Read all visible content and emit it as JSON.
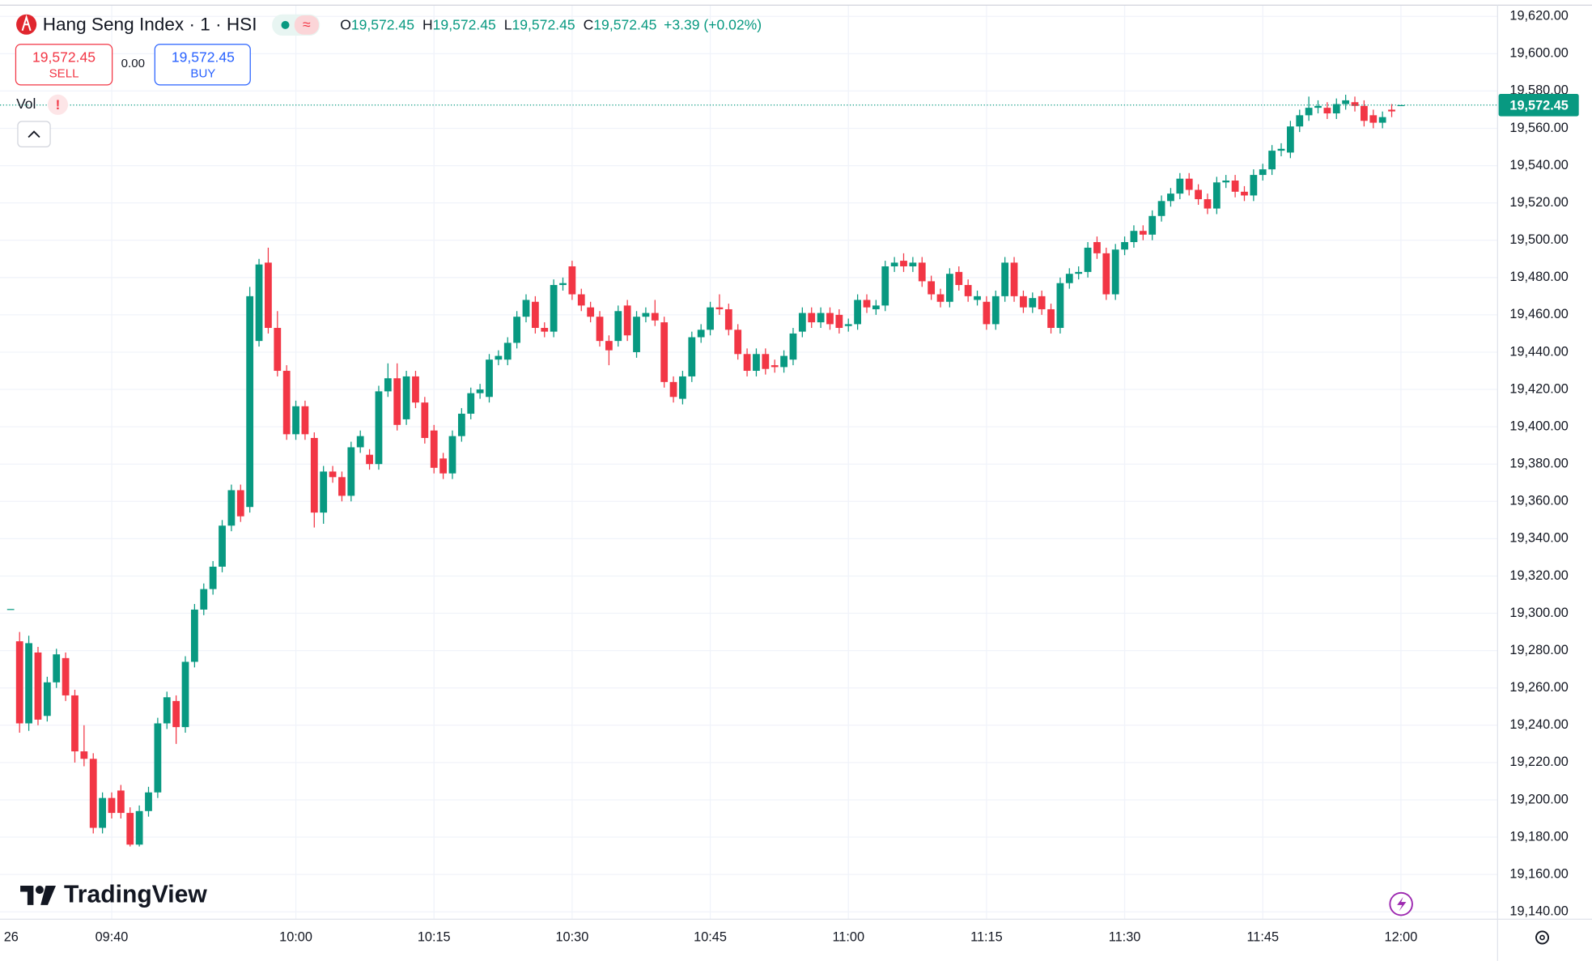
{
  "header": {
    "title": "Hang Seng Index · 1 · HSI",
    "ohlc": [
      {
        "label": "O",
        "value": "19,572.45"
      },
      {
        "label": "H",
        "value": "19,572.45"
      },
      {
        "label": "L",
        "value": "19,572.45"
      },
      {
        "label": "C",
        "value": "19,572.45"
      }
    ],
    "change": "+3.39 (+0.02%)",
    "sell_price": "19,572.45",
    "sell_label": "SELL",
    "spread": "0.00",
    "buy_price": "19,572.45",
    "buy_label": "BUY",
    "vol_label": "Vol",
    "brand": "TradingView"
  },
  "chart_data": {
    "type": "candlestick",
    "up_color": "#089981",
    "down_color": "#f23645",
    "grid": true,
    "x": [
      "09:30",
      "09:31",
      "09:32",
      "09:33",
      "09:34",
      "09:35",
      "09:36",
      "09:37",
      "09:38",
      "09:39",
      "09:40",
      "09:41",
      "09:42",
      "09:43",
      "09:44",
      "09:45",
      "09:46",
      "09:47",
      "09:48",
      "09:49",
      "09:50",
      "09:51",
      "09:52",
      "09:53",
      "09:54",
      "09:55",
      "09:56",
      "09:57",
      "09:58",
      "09:59",
      "10:00",
      "10:01",
      "10:02",
      "10:03",
      "10:04",
      "10:05",
      "10:06",
      "10:07",
      "10:08",
      "10:09",
      "10:10",
      "10:11",
      "10:12",
      "10:13",
      "10:14",
      "10:15",
      "10:16",
      "10:17",
      "10:18",
      "10:19",
      "10:20",
      "10:21",
      "10:22",
      "10:23",
      "10:24",
      "10:25",
      "10:26",
      "10:27",
      "10:28",
      "10:29",
      "10:30",
      "10:31",
      "10:32",
      "10:33",
      "10:34",
      "10:35",
      "10:36",
      "10:37",
      "10:38",
      "10:39",
      "10:40",
      "10:41",
      "10:42",
      "10:43",
      "10:44",
      "10:45",
      "10:46",
      "10:47",
      "10:48",
      "10:49",
      "10:50",
      "10:51",
      "10:52",
      "10:53",
      "10:54",
      "10:55",
      "10:56",
      "10:57",
      "10:58",
      "10:59",
      "11:00",
      "11:01",
      "11:02",
      "11:03",
      "11:04",
      "11:05",
      "11:06",
      "11:07",
      "11:08",
      "11:09",
      "11:10",
      "11:11",
      "11:12",
      "11:13",
      "11:14",
      "11:15",
      "11:16",
      "11:17",
      "11:18",
      "11:19",
      "11:20",
      "11:21",
      "11:22",
      "11:23",
      "11:24",
      "11:25",
      "11:26",
      "11:27",
      "11:28",
      "11:29",
      "11:30",
      "11:31",
      "11:32",
      "11:33",
      "11:34",
      "11:35",
      "11:36",
      "11:37",
      "11:38",
      "11:39",
      "11:40",
      "11:41",
      "11:42",
      "11:43",
      "11:44",
      "11:45",
      "11:46",
      "11:47",
      "11:48",
      "11:49",
      "11:50",
      "11:51",
      "11:52",
      "11:53",
      "11:54",
      "11:55",
      "11:56",
      "11:57",
      "11:58",
      "11:59",
      "12:00"
    ],
    "candles": [
      [
        19285,
        19290,
        19236,
        19241
      ],
      [
        19241,
        19288,
        19237,
        19284
      ],
      [
        19279,
        19282,
        19240,
        19243
      ],
      [
        19245,
        19266,
        19242,
        19263
      ],
      [
        19263,
        19281,
        19260,
        19278
      ],
      [
        19276,
        19279,
        19253,
        19256
      ],
      [
        19256,
        19259,
        19220,
        19226
      ],
      [
        19226,
        19240,
        19218,
        19222
      ],
      [
        19222,
        19225,
        19182,
        19185
      ],
      [
        19185,
        19204,
        19182,
        19201
      ],
      [
        19201,
        19204,
        19190,
        19193
      ],
      [
        19205,
        19208,
        19190,
        19193
      ],
      [
        19193,
        19196,
        19175,
        19176
      ],
      [
        19176,
        19197,
        19175,
        19194
      ],
      [
        19194,
        19207,
        19191,
        19204
      ],
      [
        19204,
        19244,
        19201,
        19241
      ],
      [
        19241,
        19258,
        19238,
        19255
      ],
      [
        19253,
        19256,
        19230,
        19239
      ],
      [
        19239,
        19277,
        19236,
        19274
      ],
      [
        19274,
        19305,
        19271,
        19302
      ],
      [
        19302,
        19316,
        19299,
        19313
      ],
      [
        19313,
        19328,
        19310,
        19325
      ],
      [
        19325,
        19350,
        19322,
        19347
      ],
      [
        19347,
        19369,
        19344,
        19366
      ],
      [
        19366,
        19369,
        19349,
        19352
      ],
      [
        19357,
        19475,
        19354,
        19470
      ],
      [
        19446,
        19490,
        19443,
        19487
      ],
      [
        19488,
        19496,
        19450,
        19453
      ],
      [
        19453,
        19462,
        19427,
        19430
      ],
      [
        19430,
        19433,
        19393,
        19396
      ],
      [
        19396,
        19414,
        19393,
        19411
      ],
      [
        19411,
        19414,
        19393,
        19396
      ],
      [
        19394,
        19397,
        19346,
        19354
      ],
      [
        19354,
        19379,
        19348,
        19376
      ],
      [
        19376,
        19379,
        19370,
        19373
      ],
      [
        19373,
        19376,
        19360,
        19363
      ],
      [
        19363,
        19392,
        19360,
        19389
      ],
      [
        19389,
        19398,
        19386,
        19395
      ],
      [
        19385,
        19388,
        19377,
        19380
      ],
      [
        19380,
        19422,
        19377,
        19419
      ],
      [
        19419,
        19434,
        19416,
        19426
      ],
      [
        19426,
        19434,
        19398,
        19401
      ],
      [
        19404,
        19430,
        19401,
        19427
      ],
      [
        19427,
        19430,
        19410,
        19413
      ],
      [
        19413,
        19416,
        19391,
        19394
      ],
      [
        19398,
        19401,
        19375,
        19378
      ],
      [
        19383,
        19386,
        19372,
        19375
      ],
      [
        19375,
        19398,
        19372,
        19395
      ],
      [
        19395,
        19410,
        19392,
        19407
      ],
      [
        19407,
        19421,
        19404,
        19418
      ],
      [
        19418,
        19423,
        19415,
        19420
      ],
      [
        19416,
        19439,
        19413,
        19436
      ],
      [
        19436,
        19441,
        19433,
        19438
      ],
      [
        19436,
        19448,
        19433,
        19445
      ],
      [
        19445,
        19462,
        19442,
        19459
      ],
      [
        19459,
        19471,
        19456,
        19468
      ],
      [
        19467,
        19470,
        19450,
        19453
      ],
      [
        19453,
        19456,
        19448,
        19451
      ],
      [
        19451,
        19479,
        19448,
        19476
      ],
      [
        19476,
        19480,
        19473,
        19477
      ],
      [
        19486,
        19489,
        19468,
        19471
      ],
      [
        19471,
        19474,
        19462,
        19465
      ],
      [
        19464,
        19467,
        19456,
        19459
      ],
      [
        19459,
        19462,
        19443,
        19446
      ],
      [
        19446,
        19449,
        19433,
        19441
      ],
      [
        19446,
        19465,
        19443,
        19462
      ],
      [
        19465,
        19468,
        19446,
        19449
      ],
      [
        19440,
        19462,
        19437,
        19459
      ],
      [
        19459,
        19464,
        19456,
        19461
      ],
      [
        19461,
        19468,
        19454,
        19457
      ],
      [
        19456,
        19459,
        19421,
        19424
      ],
      [
        19424,
        19427,
        19413,
        19416
      ],
      [
        19415,
        19430,
        19412,
        19427
      ],
      [
        19427,
        19451,
        19424,
        19448
      ],
      [
        19448,
        19455,
        19445,
        19452
      ],
      [
        19452,
        19467,
        19449,
        19464
      ],
      [
        19464,
        19471,
        19460,
        19463
      ],
      [
        19463,
        19466,
        19449,
        19452
      ],
      [
        19452,
        19455,
        19436,
        19439
      ],
      [
        19439,
        19442,
        19427,
        19430
      ],
      [
        19430,
        19442,
        19427,
        19439
      ],
      [
        19439,
        19442,
        19428,
        19431
      ],
      [
        19433,
        19436,
        19429,
        19432
      ],
      [
        19432,
        19441,
        19429,
        19438
      ],
      [
        19436,
        19453,
        19433,
        19450
      ],
      [
        19451,
        19464,
        19448,
        19461
      ],
      [
        19461,
        19464,
        19453,
        19456
      ],
      [
        19456,
        19464,
        19453,
        19461
      ],
      [
        19461,
        19464,
        19452,
        19455
      ],
      [
        19460,
        19463,
        19450,
        19453
      ],
      [
        19454,
        19458,
        19451,
        19455
      ],
      [
        19455,
        19471,
        19452,
        19468
      ],
      [
        19468,
        19471,
        19461,
        19464
      ],
      [
        19463,
        19468,
        19460,
        19465
      ],
      [
        19465,
        19489,
        19462,
        19486
      ],
      [
        19486,
        19491,
        19483,
        19488
      ],
      [
        19489,
        19493,
        19483,
        19486
      ],
      [
        19486,
        19491,
        19483,
        19488
      ],
      [
        19488,
        19491,
        19475,
        19478
      ],
      [
        19478,
        19481,
        19468,
        19471
      ],
      [
        19471,
        19474,
        19464,
        19467
      ],
      [
        19467,
        19485,
        19464,
        19482
      ],
      [
        19483,
        19486,
        19473,
        19476
      ],
      [
        19476,
        19479,
        19467,
        19470
      ],
      [
        19468,
        19473,
        19465,
        19470
      ],
      [
        19467,
        19470,
        19452,
        19455
      ],
      [
        19455,
        19473,
        19452,
        19470
      ],
      [
        19470,
        19491,
        19467,
        19488
      ],
      [
        19488,
        19491,
        19467,
        19470
      ],
      [
        19470,
        19473,
        19461,
        19464
      ],
      [
        19464,
        19472,
        19461,
        19469
      ],
      [
        19470,
        19473,
        19460,
        19463
      ],
      [
        19463,
        19466,
        19450,
        19453
      ],
      [
        19453,
        19480,
        19450,
        19477
      ],
      [
        19477,
        19485,
        19474,
        19482
      ],
      [
        19482,
        19486,
        19479,
        19483
      ],
      [
        19483,
        19499,
        19480,
        19496
      ],
      [
        19499,
        19502,
        19490,
        19493
      ],
      [
        19493,
        19496,
        19468,
        19471
      ],
      [
        19471,
        19498,
        19468,
        19495
      ],
      [
        19495,
        19502,
        19492,
        19499
      ],
      [
        19499,
        19508,
        19496,
        19505
      ],
      [
        19505,
        19508,
        19500,
        19503
      ],
      [
        19503,
        19516,
        19500,
        19513
      ],
      [
        19513,
        19524,
        19510,
        19521
      ],
      [
        19521,
        19528,
        19518,
        19525
      ],
      [
        19525,
        19536,
        19522,
        19533
      ],
      [
        19533,
        19536,
        19524,
        19527
      ],
      [
        19527,
        19530,
        19519,
        19522
      ],
      [
        19522,
        19525,
        19514,
        19517
      ],
      [
        19517,
        19534,
        19514,
        19531
      ],
      [
        19531,
        19535,
        19528,
        19532
      ],
      [
        19532,
        19535,
        19523,
        19526
      ],
      [
        19526,
        19529,
        19521,
        19524
      ],
      [
        19524,
        19538,
        19521,
        19535
      ],
      [
        19535,
        19541,
        19532,
        19538
      ],
      [
        19538,
        19551,
        19535,
        19548
      ],
      [
        19548,
        19552,
        19545,
        19549
      ],
      [
        19547,
        19564,
        19544,
        19561
      ],
      [
        19561,
        19570,
        19558,
        19567
      ],
      [
        19567,
        19577,
        19564,
        19571
      ],
      [
        19571,
        19575,
        19568,
        19572
      ],
      [
        19571,
        19574,
        19565,
        19568
      ],
      [
        19568,
        19576,
        19565,
        19573
      ],
      [
        19573,
        19578,
        19570,
        19575
      ],
      [
        19574,
        19577,
        19569,
        19572
      ],
      [
        19572,
        19575,
        19561,
        19564
      ],
      [
        19567,
        19570,
        19560,
        19563
      ],
      [
        19563,
        19569,
        19560,
        19566
      ],
      [
        19570,
        19573,
        19566,
        19569.06
      ],
      [
        19572.45,
        19572.45,
        19572.45,
        19572.45
      ]
    ],
    "ylim": [
      19136,
      19626
    ],
    "yticks": [
      {
        "value": 19140,
        "label": "19,140.00"
      },
      {
        "value": 19160,
        "label": "19,160.00"
      },
      {
        "value": 19180,
        "label": "19,180.00"
      },
      {
        "value": 19200,
        "label": "19,200.00"
      },
      {
        "value": 19220,
        "label": "19,220.00"
      },
      {
        "value": 19240,
        "label": "19,240.00"
      },
      {
        "value": 19260,
        "label": "19,260.00"
      },
      {
        "value": 19280,
        "label": "19,280.00"
      },
      {
        "value": 19300,
        "label": "19,300.00"
      },
      {
        "value": 19320,
        "label": "19,320.00"
      },
      {
        "value": 19340,
        "label": "19,340.00"
      },
      {
        "value": 19360,
        "label": "19,360.00"
      },
      {
        "value": 19380,
        "label": "19,380.00"
      },
      {
        "value": 19400,
        "label": "19,400.00"
      },
      {
        "value": 19420,
        "label": "19,420.00"
      },
      {
        "value": 19440,
        "label": "19,440.00"
      },
      {
        "value": 19460,
        "label": "19,460.00"
      },
      {
        "value": 19480,
        "label": "19,480.00"
      },
      {
        "value": 19500,
        "label": "19,500.00"
      },
      {
        "value": 19520,
        "label": "19,520.00"
      },
      {
        "value": 19540,
        "label": "19,540.00"
      },
      {
        "value": 19560,
        "label": "19,560.00"
      },
      {
        "value": 19580,
        "label": "19,580.00"
      },
      {
        "value": 19600,
        "label": "19,600.00"
      },
      {
        "value": 19620,
        "label": "19,620.00"
      }
    ],
    "xticks": [
      "26",
      "09:40",
      "10:00",
      "10:15",
      "10:30",
      "10:45",
      "11:00",
      "11:15",
      "11:30",
      "11:45",
      "12:00"
    ],
    "last_price_label": "19,572.45"
  }
}
